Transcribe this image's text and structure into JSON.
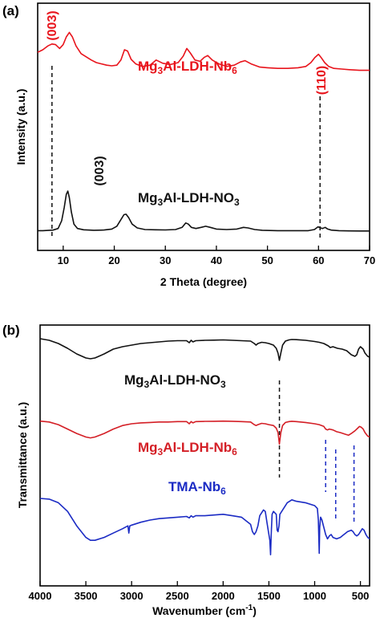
{
  "chart_data": [
    {
      "panel": "(a)",
      "type": "line",
      "xlabel": "2 Theta (degree)",
      "ylabel": "Intensity (a.u.)",
      "xlim": [
        5,
        70
      ],
      "xticks": [
        10,
        20,
        30,
        40,
        50,
        60,
        70
      ],
      "ylim": [
        0,
        1
      ],
      "series": [
        {
          "name_main": "Mg",
          "name_sub1": "3",
          "name_mid": "Al-LDH-Nb",
          "name_sub2": "6",
          "color": "#e8141c",
          "x": [
            5,
            6,
            7,
            7.8,
            8.5,
            9.3,
            10,
            10.6,
            11.2,
            11.8,
            12.5,
            13.5,
            14.5,
            15.5,
            16.5,
            17.5,
            18.5,
            19.5,
            20.5,
            21.3,
            22,
            22.6,
            23.3,
            24.2,
            25.5,
            27,
            28.2,
            29.5,
            31,
            32.5,
            33.5,
            34.2,
            34.9,
            35.8,
            36.8,
            37.6,
            38.3,
            39.2,
            40.5,
            42,
            43.5,
            44.7,
            45.6,
            46.8,
            48.5,
            50,
            52,
            54,
            56,
            57.5,
            58.5,
            59.3,
            60,
            60.5,
            61.2,
            62,
            63,
            64.5,
            66,
            68,
            70
          ],
          "y": [
            0.78,
            0.8,
            0.83,
            0.845,
            0.84,
            0.81,
            0.84,
            0.9,
            0.935,
            0.9,
            0.83,
            0.77,
            0.745,
            0.72,
            0.7,
            0.69,
            0.68,
            0.675,
            0.68,
            0.72,
            0.8,
            0.79,
            0.725,
            0.69,
            0.67,
            0.68,
            0.72,
            0.695,
            0.685,
            0.7,
            0.75,
            0.81,
            0.775,
            0.72,
            0.71,
            0.74,
            0.755,
            0.72,
            0.69,
            0.67,
            0.68,
            0.705,
            0.715,
            0.69,
            0.665,
            0.66,
            0.655,
            0.655,
            0.66,
            0.67,
            0.7,
            0.74,
            0.765,
            0.74,
            0.7,
            0.67,
            0.655,
            0.65,
            0.645,
            0.64,
            0.64
          ]
        },
        {
          "name_main": "Mg",
          "name_sub1": "3",
          "name_mid": "Al-LDH-NO",
          "name_sub2": "3",
          "color": "#111111",
          "x": [
            5,
            6,
            7,
            8,
            9,
            9.7,
            10.2,
            10.6,
            10.9,
            11.2,
            11.6,
            12.1,
            12.8,
            14,
            16,
            18,
            19.5,
            20.5,
            21.3,
            21.9,
            22.3,
            22.8,
            23.5,
            24.5,
            26,
            28,
            30,
            32,
            33.3,
            34,
            34.5,
            35.1,
            36,
            37,
            37.9,
            38.8,
            40,
            42,
            44,
            45.3,
            46.2,
            47.5,
            49,
            52,
            55,
            58,
            59.2,
            59.9,
            60.4,
            60.8,
            61.3,
            61.8,
            62.5,
            64,
            66,
            68,
            70
          ],
          "y": [
            0.07,
            0.07,
            0.072,
            0.075,
            0.09,
            0.16,
            0.28,
            0.4,
            0.43,
            0.37,
            0.24,
            0.13,
            0.09,
            0.078,
            0.074,
            0.076,
            0.085,
            0.11,
            0.17,
            0.215,
            0.22,
            0.19,
            0.13,
            0.095,
            0.08,
            0.078,
            0.077,
            0.08,
            0.1,
            0.14,
            0.13,
            0.1,
            0.09,
            0.1,
            0.11,
            0.1,
            0.085,
            0.08,
            0.085,
            0.1,
            0.095,
            0.08,
            0.074,
            0.07,
            0.07,
            0.07,
            0.08,
            0.105,
            0.095,
            0.09,
            0.1,
            0.085,
            0.075,
            0.07,
            0.068,
            0.067,
            0.067
          ]
        }
      ],
      "annotations": [
        {
          "text": "(003)",
          "color": "#e8141c"
        },
        {
          "text": "(110)",
          "color": "#e8141c"
        },
        {
          "text": "(003)",
          "color": "#111111"
        }
      ],
      "guides": [
        7.8,
        60.3
      ]
    },
    {
      "panel": "(b)",
      "type": "line",
      "xlabel_main": "Wavenumber (cm",
      "xlabel_sup": "-1",
      "xlabel_end": ")",
      "ylabel": "Transmittance (a.u.)",
      "xlim": [
        4000,
        400
      ],
      "xticks": [
        4000,
        3500,
        3000,
        2500,
        2000,
        1500,
        1000,
        500
      ],
      "ylim": [
        0,
        1
      ],
      "series": [
        {
          "name_main": "Mg",
          "name_sub1": "3",
          "name_mid": "Al-LDH-NO",
          "name_sub2": "3",
          "color": "#111111",
          "x": [
            4000,
            3900,
            3800,
            3700,
            3600,
            3500,
            3450,
            3400,
            3300,
            3200,
            3100,
            3000,
            2900,
            2800,
            2700,
            2600,
            2500,
            2400,
            2370,
            2350,
            2330,
            2300,
            2200,
            2100,
            2000,
            1900,
            1800,
            1700,
            1660,
            1640,
            1620,
            1580,
            1540,
            1500,
            1450,
            1420,
            1400,
            1385,
            1370,
            1350,
            1320,
            1280,
            1250,
            1200,
            1100,
            1000,
            950,
            900,
            850,
            830,
            800,
            750,
            700,
            650,
            600,
            560,
            540,
            520,
            500,
            470,
            450,
            420,
            400
          ],
          "y": [
            0.98,
            0.96,
            0.92,
            0.86,
            0.79,
            0.74,
            0.73,
            0.74,
            0.79,
            0.85,
            0.88,
            0.9,
            0.92,
            0.93,
            0.94,
            0.95,
            0.955,
            0.955,
            0.93,
            0.96,
            0.94,
            0.955,
            0.96,
            0.962,
            0.965,
            0.96,
            0.955,
            0.95,
            0.92,
            0.9,
            0.92,
            0.935,
            0.93,
            0.92,
            0.9,
            0.86,
            0.8,
            0.71,
            0.8,
            0.9,
            0.95,
            0.965,
            0.97,
            0.968,
            0.96,
            0.945,
            0.935,
            0.92,
            0.89,
            0.87,
            0.88,
            0.86,
            0.85,
            0.83,
            0.78,
            0.76,
            0.78,
            0.85,
            0.88,
            0.85,
            0.8,
            0.76,
            0.75
          ]
        },
        {
          "name_main": "Mg",
          "name_sub1": "3",
          "name_mid": "Al-LDH-Nb",
          "name_sub2": "6",
          "color": "#d41f26",
          "x": [
            4000,
            3900,
            3800,
            3700,
            3600,
            3500,
            3450,
            3400,
            3300,
            3200,
            3100,
            3000,
            2900,
            2800,
            2700,
            2600,
            2500,
            2400,
            2370,
            2350,
            2330,
            2300,
            2200,
            2100,
            2000,
            1900,
            1800,
            1700,
            1660,
            1640,
            1620,
            1580,
            1540,
            1500,
            1450,
            1420,
            1400,
            1385,
            1370,
            1350,
            1320,
            1280,
            1250,
            1200,
            1100,
            1000,
            950,
            900,
            880,
            860,
            840,
            800,
            760,
            720,
            690,
            660,
            630,
            600,
            560,
            530,
            510,
            490,
            470,
            450,
            420,
            400
          ],
          "y": [
            0.73,
            0.72,
            0.69,
            0.64,
            0.59,
            0.55,
            0.54,
            0.55,
            0.59,
            0.64,
            0.68,
            0.7,
            0.71,
            0.715,
            0.72,
            0.72,
            0.725,
            0.725,
            0.7,
            0.725,
            0.71,
            0.725,
            0.727,
            0.728,
            0.73,
            0.728,
            0.725,
            0.72,
            0.69,
            0.68,
            0.69,
            0.705,
            0.7,
            0.69,
            0.68,
            0.65,
            0.6,
            0.47,
            0.6,
            0.68,
            0.715,
            0.725,
            0.728,
            0.725,
            0.715,
            0.7,
            0.69,
            0.67,
            0.64,
            0.63,
            0.64,
            0.63,
            0.61,
            0.6,
            0.59,
            0.58,
            0.57,
            0.59,
            0.62,
            0.65,
            0.67,
            0.66,
            0.64,
            0.6,
            0.56,
            0.55
          ]
        },
        {
          "name_main": "TMA-Nb",
          "name_sub1": "",
          "name_mid": "",
          "name_sub2": "6",
          "color": "#1b2bc4",
          "x": [
            4000,
            3900,
            3800,
            3700,
            3600,
            3500,
            3450,
            3400,
            3300,
            3200,
            3100,
            3040,
            3030,
            3020,
            3000,
            2900,
            2800,
            2700,
            2600,
            2500,
            2400,
            2370,
            2350,
            2330,
            2300,
            2200,
            2100,
            2000,
            1900,
            1800,
            1700,
            1680,
            1660,
            1640,
            1620,
            1600,
            1560,
            1540,
            1520,
            1500,
            1490,
            1482,
            1475,
            1465,
            1450,
            1420,
            1410,
            1400,
            1390,
            1380,
            1300,
            1250,
            1200,
            1100,
            1000,
            970,
            960,
            950,
            945,
            935,
            920,
            900,
            880,
            860,
            840,
            820,
            800,
            760,
            720,
            680,
            640,
            600,
            580,
            560,
            540,
            520,
            500,
            480,
            460,
            440,
            420,
            400
          ],
          "y": [
            0.55,
            0.545,
            0.52,
            0.46,
            0.36,
            0.28,
            0.26,
            0.26,
            0.28,
            0.31,
            0.34,
            0.36,
            0.31,
            0.36,
            0.365,
            0.385,
            0.4,
            0.41,
            0.415,
            0.42,
            0.425,
            0.415,
            0.43,
            0.42,
            0.43,
            0.43,
            0.435,
            0.44,
            0.43,
            0.42,
            0.37,
            0.32,
            0.3,
            0.32,
            0.36,
            0.43,
            0.47,
            0.46,
            0.38,
            0.3,
            0.26,
            0.16,
            0.3,
            0.44,
            0.46,
            0.44,
            0.33,
            0.32,
            0.36,
            0.44,
            0.52,
            0.54,
            0.53,
            0.52,
            0.5,
            0.48,
            0.4,
            0.17,
            0.35,
            0.42,
            0.4,
            0.35,
            0.3,
            0.27,
            0.29,
            0.3,
            0.28,
            0.27,
            0.28,
            0.3,
            0.32,
            0.33,
            0.32,
            0.3,
            0.29,
            0.3,
            0.32,
            0.34,
            0.33,
            0.3,
            0.28,
            0.27
          ]
        }
      ],
      "guides": [
        1385,
        880,
        770,
        570
      ]
    }
  ]
}
